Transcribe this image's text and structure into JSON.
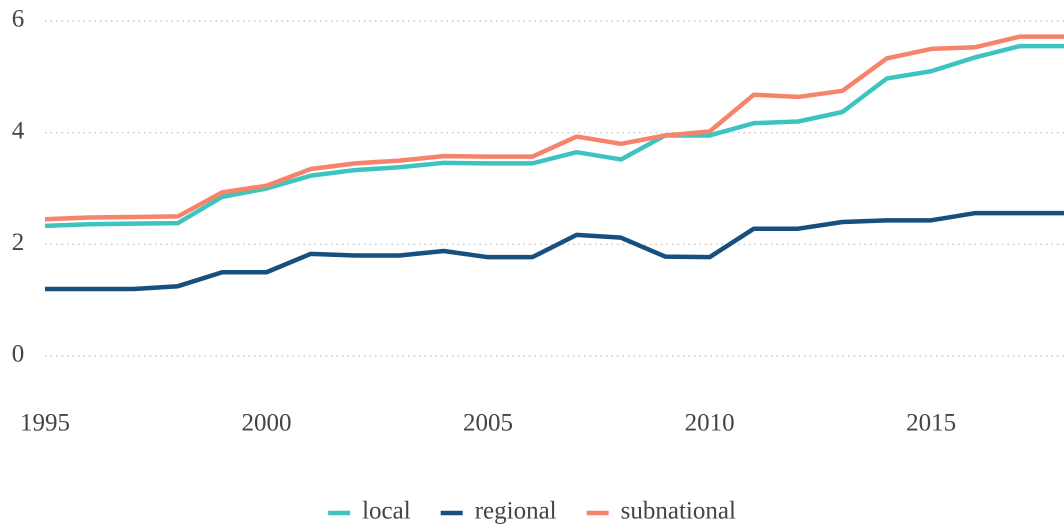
{
  "chart_data": {
    "type": "line",
    "x": [
      1995,
      1996,
      1997,
      1998,
      1999,
      2000,
      2001,
      2002,
      2003,
      2004,
      2005,
      2006,
      2007,
      2008,
      2009,
      2010,
      2011,
      2012,
      2013,
      2014,
      2015,
      2016,
      2017,
      2018
    ],
    "series": [
      {
        "name": "local",
        "color": "#3ec4c0",
        "values": [
          2.33,
          2.36,
          2.37,
          2.38,
          2.85,
          3.0,
          3.23,
          3.33,
          3.38,
          3.46,
          3.45,
          3.45,
          3.65,
          3.52,
          3.95,
          3.95,
          4.17,
          4.2,
          4.37,
          4.97,
          5.1,
          5.35,
          5.55,
          5.55
        ]
      },
      {
        "name": "regional",
        "color": "#17507e",
        "values": [
          1.2,
          1.2,
          1.2,
          1.25,
          1.5,
          1.5,
          1.83,
          1.8,
          1.8,
          1.88,
          1.77,
          1.77,
          2.17,
          2.12,
          1.78,
          1.77,
          2.28,
          2.28,
          2.4,
          2.43,
          2.43,
          2.56,
          2.56,
          2.56
        ]
      },
      {
        "name": "subnational",
        "color": "#f5846a",
        "values": [
          2.45,
          2.48,
          2.49,
          2.5,
          2.93,
          3.05,
          3.35,
          3.45,
          3.5,
          3.58,
          3.57,
          3.57,
          3.93,
          3.8,
          3.95,
          4.02,
          4.68,
          4.64,
          4.75,
          5.33,
          5.5,
          5.53,
          5.72,
          5.72
        ]
      }
    ],
    "xlim": [
      1995,
      2018
    ],
    "xticks": [
      1995,
      2000,
      2005,
      2010,
      2015
    ],
    "ylim": [
      0,
      6
    ],
    "yticks": [
      0,
      2,
      4,
      6
    ],
    "grid": true
  }
}
